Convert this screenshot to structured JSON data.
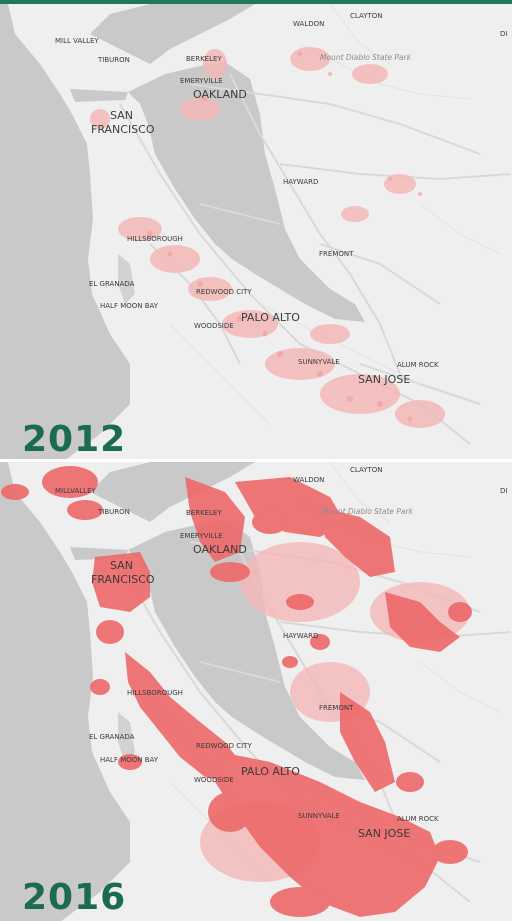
{
  "panels": [
    {
      "year": "2012",
      "labels": {
        "mill_valley": "MILL VALLEY",
        "tiburon": "TIBURON",
        "berkeley": "BERKELEY",
        "emeryville": "EMERYVILLE",
        "oakland": "OAKLAND",
        "san": "SAN",
        "francisco": "FRANCISCO",
        "waldon": "WALDON",
        "clayton": "CLAYTON",
        "park": "Mount Diablo State Park",
        "di": "DI",
        "hayward": "HAYWARD",
        "hillsborough": "HILLSBOROUGH",
        "fremont": "FREMONT",
        "el_granada": "EL GRANADA",
        "half_moon_bay": "HALF MOON BAY",
        "redwood_city": "REDWOOD CITY",
        "palo_alto": "PALO ALTO",
        "woodside": "WOODSIDE",
        "sunnyvale": "SUNNYVALE",
        "alum_rock": "ALUM ROCK",
        "san_jose": "SAN JOSE"
      }
    },
    {
      "year": "2016",
      "labels": {
        "mill_valley": "MILLVALLEY",
        "tiburon": "TIBURON",
        "berkeley": "BERKELEY",
        "emeryville": "EMERYVILLE",
        "oakland": "OAKLAND",
        "san": "SAN",
        "francisco": "FRANCISCO",
        "waldon": "WALDON",
        "clayton": "CLAYTON",
        "park": "Mount Diablo State Park",
        "di": "DI",
        "hayward": "HAYWARD",
        "hillsborough": "HILLSBOROUGH",
        "fremont": "FREMONT",
        "el_granada": "EL GRANADA",
        "half_moon_bay": "HALF MOON BAY",
        "redwood_city": "REDWOOD CITY",
        "palo_alto": "PALO ALTO",
        "woodside": "WOODSIDE",
        "sunnyvale": "SUNNYVALE",
        "alum_rock": "ALUM ROCK",
        "san_jose": "SAN JOSE"
      }
    }
  ],
  "colors": {
    "water": "#c9c9c9",
    "land": "#eeeeee",
    "road": "#d9d9d9",
    "heat_light": "#f4b8b8",
    "heat_strong": "#ee6b6b",
    "year_text": "#1b6b53",
    "accent_bar": "#1f7a5a"
  }
}
